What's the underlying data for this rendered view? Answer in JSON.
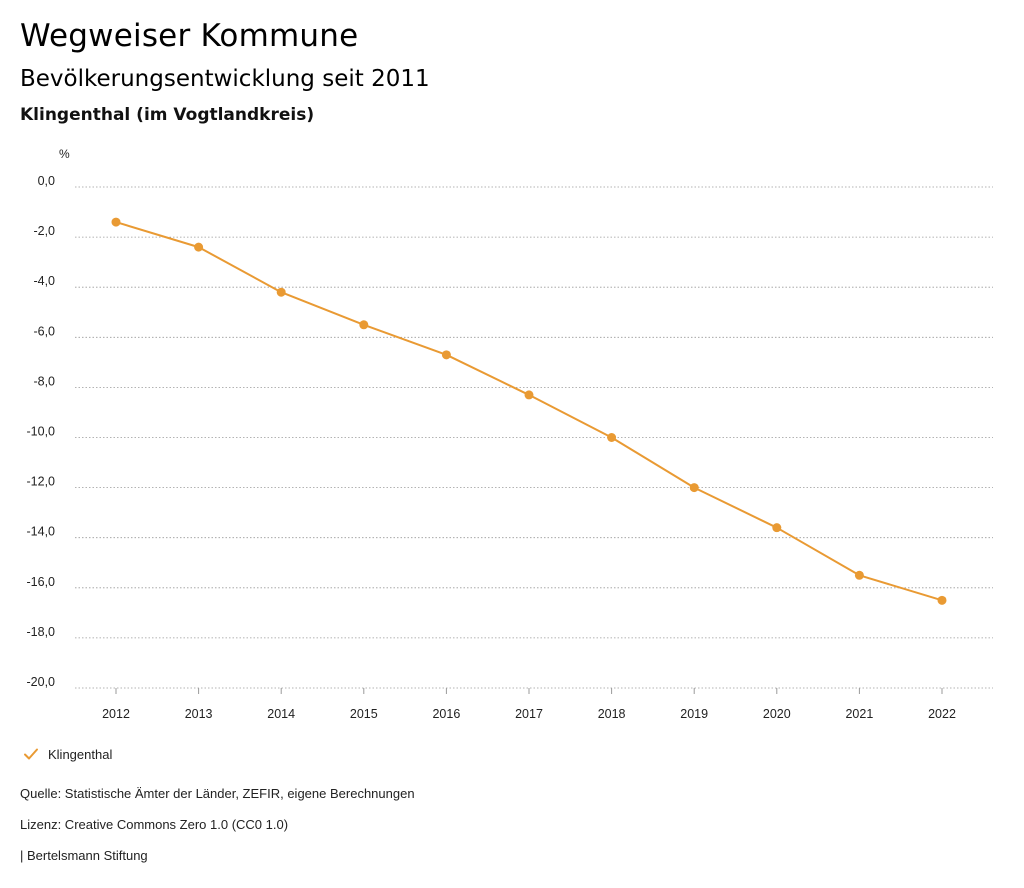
{
  "header": {
    "title": "Wegweiser Kommune",
    "subtitle": "Bevölkerungsentwicklung seit 2011",
    "region": "Klingenthal (im Vogtlandkreis)"
  },
  "chart_data": {
    "type": "line",
    "unit_label": "%",
    "x": [
      "2012",
      "2013",
      "2014",
      "2015",
      "2016",
      "2017",
      "2018",
      "2019",
      "2020",
      "2021",
      "2022"
    ],
    "series": [
      {
        "name": "Klingenthal",
        "color": "#e99a33",
        "values": [
          -1.4,
          -2.4,
          -4.2,
          -5.5,
          -6.7,
          -8.3,
          -10.0,
          -12.0,
          -13.6,
          -15.5,
          -16.5
        ]
      }
    ],
    "yticks": [
      "0,0",
      "-2,0",
      "-4,0",
      "-6,0",
      "-8,0",
      "-10,0",
      "-12,0",
      "-14,0",
      "-16,0",
      "-18,0",
      "-20,0"
    ],
    "ylim": [
      -20,
      0
    ],
    "grid": true,
    "legend_position": "bottom-left"
  },
  "footer": {
    "source": "Quelle: Statistische Ämter der Länder, ZEFIR, eigene Berechnungen",
    "license": "Lizenz: Creative Commons Zero 1.0 (CC0 1.0)",
    "publisher": "| Bertelsmann Stiftung"
  }
}
